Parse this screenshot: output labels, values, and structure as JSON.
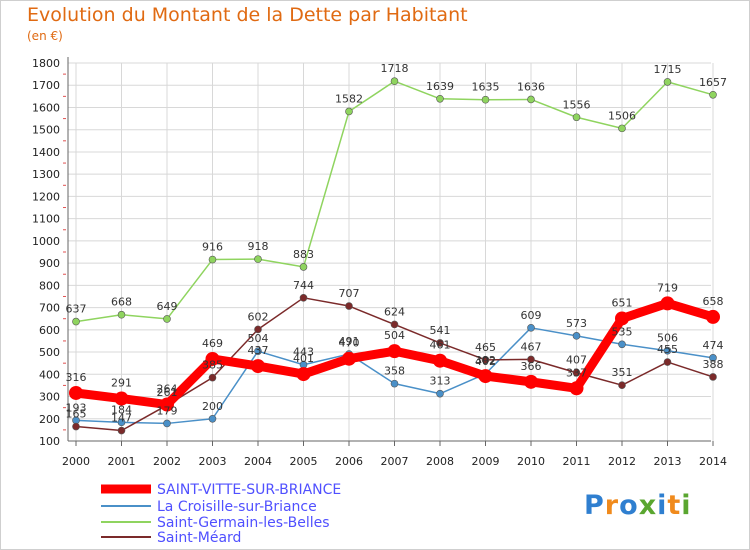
{
  "header": {
    "title": "Evolution du Montant de la Dette par Habitant",
    "subtitle": "(en €)"
  },
  "logo": {
    "text": "Proxiti",
    "colors": [
      "#2f7fd0",
      "#f08a1c",
      "#2f7fd0",
      "#5aa630",
      "#2f7fd0",
      "#f08a1c",
      "#5aa630"
    ]
  },
  "chart_data": {
    "type": "line",
    "title": "Evolution du Montant de la Dette par Habitant",
    "subtitle": "(en €)",
    "xlabel": "",
    "ylabel": "",
    "x": [
      "2000",
      "2001",
      "2002",
      "2003",
      "2004",
      "2005",
      "2006",
      "2007",
      "2008",
      "2009",
      "2010",
      "2011",
      "2012",
      "2013",
      "2014"
    ],
    "y_ticks": [
      100,
      200,
      300,
      400,
      500,
      600,
      700,
      800,
      900,
      1000,
      1100,
      1200,
      1300,
      1400,
      1500,
      1600,
      1700,
      1800
    ],
    "ylim": [
      100,
      1800
    ],
    "grid": true,
    "legend_position": "bottom-left",
    "series": [
      {
        "name": "SAINT-VITTE-SUR-BRIANCE",
        "color": "#ff0000",
        "highlight": true,
        "values": [
          316,
          291,
          264,
          469,
          437,
          401,
          470,
          504,
          461,
          392,
          366,
          337,
          651,
          719,
          658
        ],
        "labels": [
          "316",
          "291",
          "264",
          "469",
          "437",
          "401",
          "470",
          "504",
          "461",
          "392",
          "366",
          "337",
          "651",
          "719",
          "658"
        ]
      },
      {
        "name": "La Croisille-sur-Briance",
        "color": "#4a90c8",
        "highlight": false,
        "values": [
          193,
          184,
          179,
          200,
          504,
          443,
          491,
          358,
          313,
          402,
          609,
          573,
          535,
          506,
          474
        ],
        "labels": [
          "193",
          "184",
          "179",
          "200",
          "504",
          "443",
          "491",
          "358",
          "313",
          "402",
          "609",
          "573",
          "535",
          "506",
          "474"
        ]
      },
      {
        "name": "Saint-Germain-les-Belles",
        "color": "#8fd45f",
        "highlight": false,
        "values": [
          637,
          668,
          649,
          916,
          918,
          883,
          1582,
          1718,
          1639,
          1635,
          1636,
          1556,
          1506,
          1715,
          1657
        ],
        "labels": [
          "637",
          "668",
          "649",
          "916",
          "918",
          "883",
          "1582",
          "1718",
          "1639",
          "1635",
          "1636",
          "1556",
          "1506",
          "1715",
          "1657"
        ]
      },
      {
        "name": "Saint-Méard",
        "color": "#7b2a2a",
        "highlight": false,
        "values": [
          165,
          147,
          261,
          385,
          602,
          744,
          707,
          624,
          541,
          465,
          467,
          407,
          351,
          455,
          388
        ],
        "labels": [
          "165",
          "147",
          "261",
          "385",
          "602",
          "744",
          "707",
          "624",
          "541",
          "465",
          "467",
          "407",
          "351",
          "455",
          "388"
        ]
      }
    ]
  }
}
